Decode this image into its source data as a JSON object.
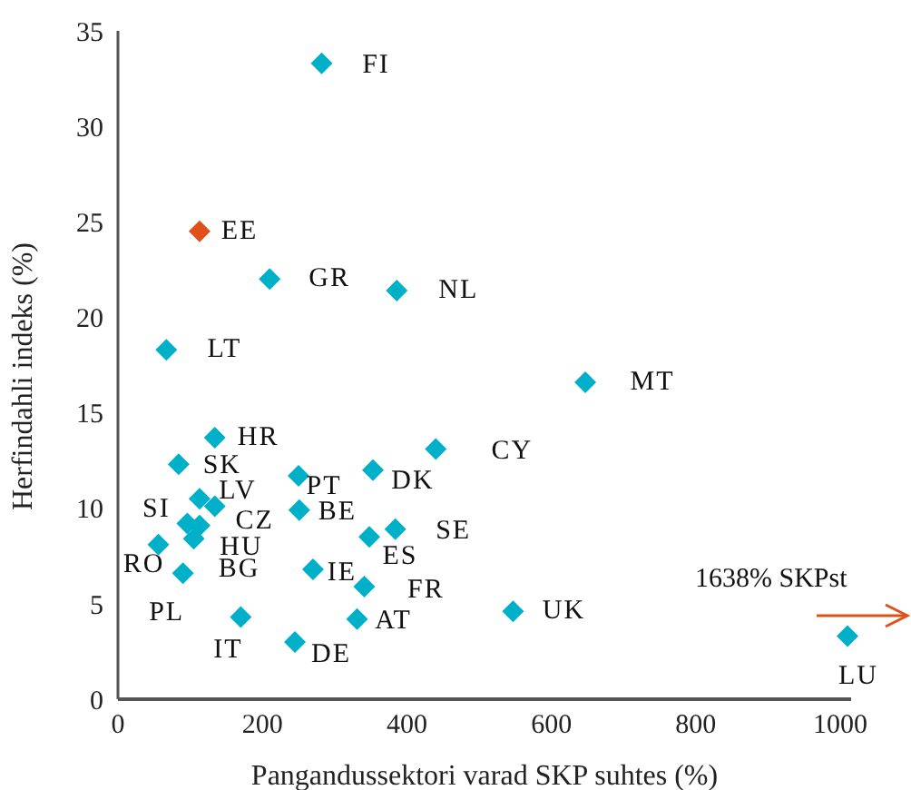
{
  "chart_data": {
    "type": "scatter",
    "xlabel": "Pangandussektori varad SKP suhtes (%)",
    "ylabel": "Herfindahli indeks (%)",
    "xlim": [
      0,
      1015
    ],
    "xticks": [
      0,
      200,
      400,
      600,
      800,
      1000
    ],
    "ylim": [
      0,
      35
    ],
    "yticks": [
      0,
      5,
      10,
      15,
      20,
      25,
      30,
      35
    ],
    "grid": false,
    "legend": false,
    "marker": "diamond",
    "annotations": [
      "1638% SKPst"
    ],
    "series": [
      {
        "name": "FI",
        "color": "#00b0c8",
        "x": [
          282
        ],
        "values": [
          33.3
        ]
      },
      {
        "name": "EE",
        "color": "#e0501a",
        "x": [
          113
        ],
        "values": [
          24.5
        ]
      },
      {
        "name": "GR",
        "color": "#00b0c8",
        "x": [
          210
        ],
        "values": [
          22
        ]
      },
      {
        "name": "NL",
        "color": "#00b0c8",
        "x": [
          386
        ],
        "values": [
          21.4
        ]
      },
      {
        "name": "LT",
        "color": "#00b0c8",
        "x": [
          67
        ],
        "values": [
          18.3
        ]
      },
      {
        "name": "MT",
        "color": "#00b0c8",
        "x": [
          647
        ],
        "values": [
          16.6
        ]
      },
      {
        "name": "HR",
        "color": "#00b0c8",
        "x": [
          134
        ],
        "values": [
          13.7
        ]
      },
      {
        "name": "CY",
        "color": "#00b0c8",
        "x": [
          440
        ],
        "values": [
          13.1
        ]
      },
      {
        "name": "SK",
        "color": "#00b0c8",
        "x": [
          84
        ],
        "values": [
          12.3
        ]
      },
      {
        "name": "DK",
        "color": "#00b0c8",
        "x": [
          353
        ],
        "values": [
          12
        ]
      },
      {
        "name": "PT",
        "color": "#00b0c8",
        "x": [
          250
        ],
        "values": [
          11.7
        ]
      },
      {
        "name": "BE",
        "color": "#00b0c8",
        "x": [
          251
        ],
        "values": [
          9.9
        ]
      },
      {
        "name": "ES",
        "color": "#00b0c8",
        "x": [
          348
        ],
        "values": [
          8.5
        ]
      },
      {
        "name": "SE",
        "color": "#00b0c8",
        "x": [
          384
        ],
        "values": [
          8.9
        ]
      },
      {
        "name": "FR",
        "color": "#00b0c8",
        "x": [
          341
        ],
        "values": [
          5.9
        ]
      },
      {
        "name": "IE",
        "color": "#00b0c8",
        "x": [
          270
        ],
        "values": [
          6.8
        ]
      },
      {
        "name": "AT",
        "color": "#00b0c8",
        "x": [
          331
        ],
        "values": [
          4.2
        ]
      },
      {
        "name": "DE",
        "color": "#00b0c8",
        "x": [
          245
        ],
        "values": [
          3
        ]
      },
      {
        "name": "IT",
        "color": "#00b0c8",
        "x": [
          170
        ],
        "values": [
          4.3
        ]
      },
      {
        "name": "PL",
        "color": "#00b0c8",
        "x": [
          90
        ],
        "values": [
          6.6
        ]
      },
      {
        "name": "RO",
        "color": "#00b0c8",
        "x": [
          56
        ],
        "values": [
          8.1
        ]
      },
      {
        "name": "LV",
        "color": "#00b0c8",
        "x": [
          113
        ],
        "values": [
          10.5
        ]
      },
      {
        "name": "CZ",
        "color": "#00b0c8",
        "x": [
          134
        ],
        "values": [
          10.1
        ]
      },
      {
        "name": "SI",
        "color": "#00b0c8",
        "x": [
          96
        ],
        "values": [
          9.2
        ]
      },
      {
        "name": "HU",
        "color": "#00b0c8",
        "x": [
          113
        ],
        "values": [
          9.1
        ]
      },
      {
        "name": "BG",
        "color": "#00b0c8",
        "x": [
          105
        ],
        "values": [
          8.4
        ]
      },
      {
        "name": "UK",
        "color": "#00b0c8",
        "x": [
          547
        ],
        "values": [
          4.6
        ]
      },
      {
        "name": "LU",
        "color": "#00b0c8",
        "x": [
          1010
        ],
        "values": [
          3.3
        ]
      }
    ]
  }
}
